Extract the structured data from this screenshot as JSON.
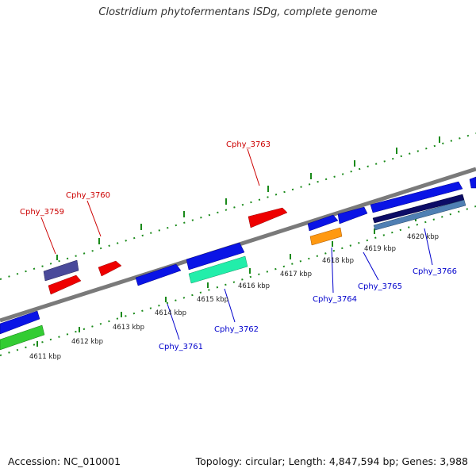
{
  "title": "Clostridium phytofermentans ISDg, complete genome",
  "footer": {
    "accession": "Accession: NC_010001",
    "topology": "Topology: circular; Length: 4,847,594 bp; Genes: 3,988"
  },
  "colors": {
    "backbone": "#888888",
    "ticks": "#1a8a1a",
    "label_top": "#cc0000",
    "label_bottom": "#0000cc"
  },
  "ticks": [
    "4611 kbp",
    "4612 kbp",
    "4613 kbp",
    "4614 kbp",
    "4615 kbp",
    "4616 kbp",
    "4617 kbp",
    "4618 kbp",
    "4619 kbp",
    "4620 kbp"
  ],
  "genes_top": [
    "Cphy_3759",
    "Cphy_3760",
    "Cphy_3763"
  ],
  "genes_bottom": [
    "Cphy_3761",
    "Cphy_3762",
    "Cphy_3764",
    "Cphy_3765",
    "Cphy_3766"
  ]
}
